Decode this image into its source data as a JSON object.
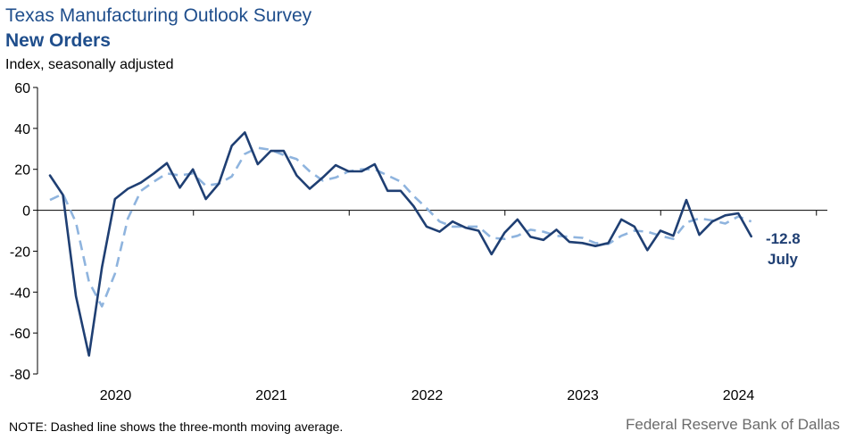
{
  "chart_data": {
    "type": "line",
    "title": "Texas Manufacturing Outlook Survey",
    "subtitle": "New Orders",
    "ylabel": "Index, seasonally adjusted",
    "ylim": [
      -80,
      60
    ],
    "yticks": [
      "60",
      "40",
      "20",
      "0",
      "-20",
      "-40",
      "-60",
      "-80"
    ],
    "year_labels": [
      "2020",
      "2021",
      "2022",
      "2023",
      "2024"
    ],
    "x_start": "2019-07",
    "series": [
      {
        "color": "#1f3f73",
        "style": "solid",
        "values": [
          17.0,
          7.5,
          -42.0,
          -71.0,
          -28.0,
          5.5,
          10.5,
          13.5,
          18.0,
          23.0,
          11.0,
          20.0,
          5.5,
          13.0,
          31.5,
          38.0,
          22.5,
          29.0,
          29.0,
          17.0,
          10.5,
          16.0,
          22.0,
          19.0,
          19.0,
          22.5,
          9.5,
          9.5,
          2.0,
          -8.0,
          -10.5,
          -5.5,
          -8.5,
          -10.0,
          -21.5,
          -11.0,
          -4.5,
          -13.0,
          -14.5,
          -9.5,
          -15.5,
          -16.0,
          -17.5,
          -16.0,
          -4.5,
          -8.0,
          -19.5,
          -10.0,
          -12.5,
          5.0,
          -12.0,
          -5.5,
          -2.5,
          -1.5,
          -12.8
        ]
      },
      {
        "color": "#8fb4de",
        "style": "dashed",
        "values": [
          5.0,
          8.0,
          -6.0,
          -35.0,
          -47.0,
          -31.0,
          -4.0,
          9.5,
          14.0,
          18.0,
          17.0,
          18.0,
          12.0,
          13.0,
          16.5,
          27.5,
          30.5,
          29.5,
          27.0,
          25.0,
          19.0,
          14.5,
          16.0,
          19.0,
          20.0,
          20.0,
          17.0,
          14.0,
          7.0,
          1.0,
          -5.5,
          -8.0,
          -8.0,
          -8.0,
          -13.5,
          -14.0,
          -12.5,
          -9.5,
          -10.5,
          -12.5,
          -13.0,
          -13.5,
          -16.0,
          -16.5,
          -12.5,
          -10.0,
          -10.5,
          -12.5,
          -14.0,
          -6.0,
          -4.0,
          -5.0,
          -6.5,
          -3.0,
          -5.5
        ]
      }
    ],
    "callout": {
      "value": "-12.8",
      "label": "July"
    },
    "grid": false,
    "legend": "none"
  },
  "note": "NOTE: Dashed line shows the three-month  moving average.",
  "source": "Federal Reserve Bank of Dallas"
}
